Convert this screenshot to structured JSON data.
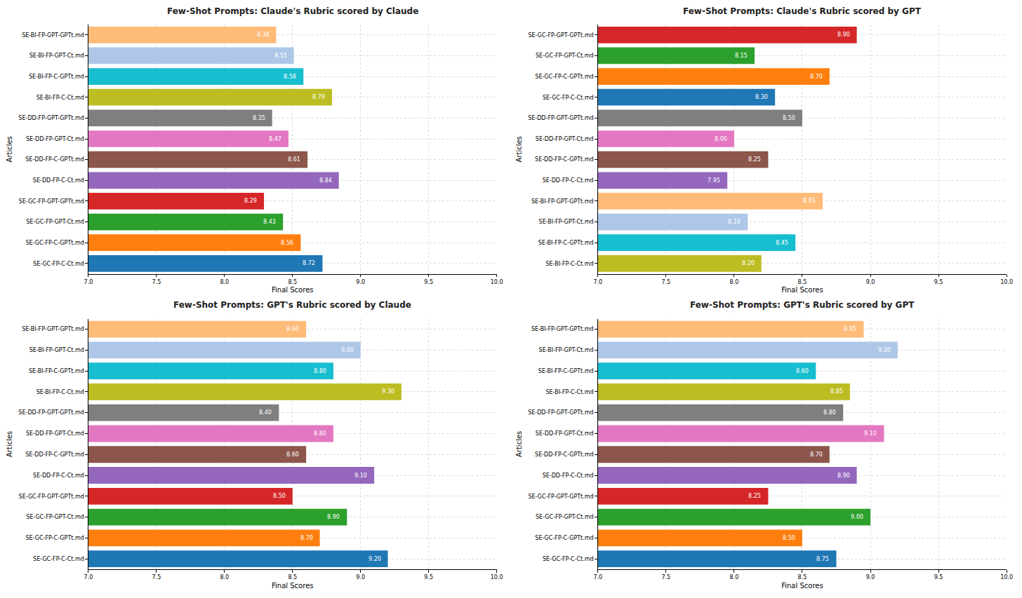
{
  "chart_data": [
    {
      "type": "bar",
      "title": "Few-Shot Prompts: Claude's Rubric scored by Claude",
      "orientation": "horizontal",
      "grid": true,
      "data_labels": true,
      "x_label": "Final Scores",
      "y_label": "Articles",
      "categories": [
        "SE-BI-FP-GPT-GPTt.md",
        "SE-BI-FP-GPT-Ct.md",
        "SE-BI-FP-C-GPTt.md",
        "SE-BI-FP-C-Ct.md",
        "SE-DD-FP-GPT-GPTt.md",
        "SE-DD-FP-GPT-Ct.md",
        "SE-DD-FP-C-GPTt.md",
        "SE-DD-FP-C-Ct.md",
        "SE-GC-FP-GPT-GPTt.md",
        "SE-GC-FP-GPT-Ct.md",
        "SE-GC-FP-C-GPTt.md",
        "SE-GC-FP-C-Ct.md"
      ],
      "values": [
        8.38,
        8.51,
        8.58,
        8.79,
        8.35,
        8.47,
        8.61,
        8.84,
        8.29,
        8.43,
        8.56,
        8.72
      ],
      "value_labels": [
        "8.38",
        "8.51",
        "8.58",
        "8.79",
        "8.35",
        "8.47",
        "8.61",
        "8.84",
        "8.29",
        "8.43",
        "8.56",
        "8.72"
      ],
      "colors": [
        "#ffbb78",
        "#aec7e8",
        "#17becf",
        "#bcbd22",
        "#7f7f7f",
        "#e377c2",
        "#8c564b",
        "#9467bd",
        "#d62728",
        "#2ca02c",
        "#ff7f0e",
        "#1f77b4"
      ],
      "xlim": [
        7,
        10
      ],
      "xticks": [
        {
          "value": 7,
          "label": "7.0"
        },
        7.5,
        {
          "value": 8,
          "label": "8.0"
        },
        8.5,
        {
          "value": 9,
          "label": "9.0"
        },
        9.5,
        {
          "value": 10,
          "label": "10.0"
        }
      ]
    },
    {
      "type": "bar",
      "title": "Few-Shot Prompts: Claude's Rubric scored by GPT",
      "orientation": "horizontal",
      "grid": true,
      "data_labels": true,
      "x_label": "Final Scores",
      "y_label": "Articles",
      "categories": [
        "SE-GC-FP-GPT-GPTt.md",
        "SE-GC-FP-GPT-Ct.md",
        "SE-GC-FP-C-GPTt.md",
        "SE-GC-FP-C-Ct.md",
        "SE-DD-FP-GPT-GPTt.md",
        "SE-DD-FP-GPT-Ct.md",
        "SE-DD-FP-C-GPTt.md",
        "SE-DD-FP-C-Ct.md",
        "SE-BI-FP-GPT-GPTt.md",
        "SE-BI-FP-GPT-Ct.md",
        "SE-BI-FP-C-GPTt.md",
        "SE-BI-FP-C-Ct.md"
      ],
      "values": [
        8.9,
        8.15,
        8.7,
        8.3,
        8.5,
        8.0,
        8.25,
        7.95,
        8.65,
        8.1,
        8.45,
        8.2
      ],
      "value_labels": [
        "8.90",
        "8.15",
        "8.70",
        "8.30",
        "8.50",
        "8.00",
        "8.25",
        "7.95",
        "8.65",
        "8.10",
        "8.45",
        "8.20"
      ],
      "colors": [
        "#d62728",
        "#2ca02c",
        "#ff7f0e",
        "#1f77b4",
        "#7f7f7f",
        "#e377c2",
        "#8c564b",
        "#9467bd",
        "#ffbb78",
        "#aec7e8",
        "#17becf",
        "#bcbd22"
      ],
      "xlim": [
        7,
        10
      ],
      "xticks": [
        {
          "value": 7,
          "label": "7.0"
        },
        7.5,
        {
          "value": 8,
          "label": "8.0"
        },
        8.5,
        {
          "value": 9,
          "label": "9.0"
        },
        9.5,
        {
          "value": 10,
          "label": "10.0"
        }
      ]
    },
    {
      "type": "bar",
      "title": "Few-Shot Prompts: GPT's Rubric scored by Claude",
      "orientation": "horizontal",
      "grid": true,
      "data_labels": true,
      "x_label": "Final Scores",
      "y_label": "Articles",
      "categories": [
        "SE-BI-FP-GPT-GPTt.md",
        "SE-BI-FP-GPT-Ct.md",
        "SE-BI-FP-C-GPTt.md",
        "SE-BI-FP-C-Ct.md",
        "SE-DD-FP-GPT-GPTt.md",
        "SE-DD-FP-GPT-Ct.md",
        "SE-DD-FP-C-GPTt.md",
        "SE-DD-FP-C-Ct.md",
        "SE-GC-FP-GPT-GPTt.md",
        "SE-GC-FP-GPT-Ct.md",
        "SE-GC-FP-C-GPTt.md",
        "SE-GC-FP-C-Ct.md"
      ],
      "values": [
        8.6,
        9.0,
        8.8,
        9.3,
        8.4,
        8.8,
        8.6,
        9.1,
        8.5,
        8.9,
        8.7,
        9.2
      ],
      "value_labels": [
        "8.60",
        "9.00",
        "8.80",
        "9.30",
        "8.40",
        "8.80",
        "8.60",
        "9.10",
        "8.50",
        "8.90",
        "8.70",
        "9.20"
      ],
      "colors": [
        "#ffbb78",
        "#aec7e8",
        "#17becf",
        "#bcbd22",
        "#7f7f7f",
        "#e377c2",
        "#8c564b",
        "#9467bd",
        "#d62728",
        "#2ca02c",
        "#ff7f0e",
        "#1f77b4"
      ],
      "xlim": [
        7,
        10
      ],
      "xticks": [
        {
          "value": 7,
          "label": "7.0"
        },
        7.5,
        {
          "value": 8,
          "label": "8.0"
        },
        8.5,
        {
          "value": 9,
          "label": "9.0"
        },
        9.5,
        {
          "value": 10,
          "label": "10.0"
        }
      ]
    },
    {
      "type": "bar",
      "title": "Few-Shot Prompts: GPT's Rubric scored by GPT",
      "orientation": "horizontal",
      "grid": true,
      "data_labels": true,
      "x_label": "Final Scores",
      "y_label": "Articles",
      "categories": [
        "SE-BI-FP-GPT-GPTt.md",
        "SE-BI-FP-GPT-Ct.md",
        "SE-BI-FP-C-GPTt.md",
        "SE-BI-FP-C-Ct.md",
        "SE-DD-FP-GPT-GPTt.md",
        "SE-DD-FP-GPT-Ct.md",
        "SE-DD-FP-C-GPTt.md",
        "SE-DD-FP-C-Ct.md",
        "SE-GC-FP-GPT-GPTt.md",
        "SE-GC-FP-GPT-Ct.md",
        "SE-GC-FP-C-GPTt.md",
        "SE-GC-FP-C-Ct.md"
      ],
      "values": [
        8.95,
        9.2,
        8.6,
        8.85,
        8.8,
        9.1,
        8.7,
        8.9,
        8.25,
        9.0,
        8.5,
        8.75
      ],
      "value_labels": [
        "8.95",
        "9.20",
        "8.60",
        "8.85",
        "8.80",
        "9.10",
        "8.70",
        "8.90",
        "8.25",
        "9.00",
        "8.50",
        "8.75"
      ],
      "colors": [
        "#ffbb78",
        "#aec7e8",
        "#17becf",
        "#bcbd22",
        "#7f7f7f",
        "#e377c2",
        "#8c564b",
        "#9467bd",
        "#d62728",
        "#2ca02c",
        "#ff7f0e",
        "#1f77b4"
      ],
      "xlim": [
        7,
        10
      ],
      "xticks": [
        {
          "value": 7,
          "label": "7.0"
        },
        7.5,
        {
          "value": 8,
          "label": "8.0"
        },
        8.5,
        {
          "value": 9,
          "label": "9.0"
        },
        9.5,
        {
          "value": 10,
          "label": "10.0"
        }
      ]
    }
  ]
}
